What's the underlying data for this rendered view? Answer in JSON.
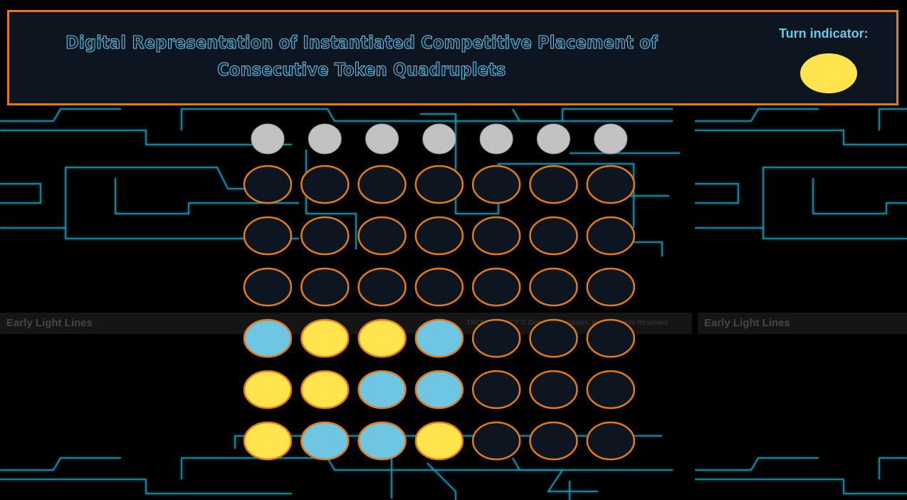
{
  "header": {
    "title": "Digital Representation of Instantiated Competitive Placement of Consecutive Token Quadruplets",
    "turn_label": "Turn indicator:",
    "turn_color": "#ffe44d"
  },
  "background": {
    "labels": [
      "Early Light Lines",
      "Early Light Lines"
    ],
    "copyright": "TRON: LEGACY © Disney Enterprises, Inc. All Rights Reserved."
  },
  "board": {
    "drop_button_color": "#c2c2c2",
    "empty_color": "#0d1520",
    "rim_color": "#e07b1a",
    "rows": [
      [
        null,
        null,
        null,
        null,
        null,
        null,
        null
      ],
      [
        null,
        null,
        null,
        null,
        null,
        null,
        null
      ],
      [
        null,
        null,
        null,
        null,
        null,
        null,
        null
      ],
      [
        "#6ec6e3",
        "#ffe44d",
        "#ffe44d",
        "#6ec6e3",
        null,
        null,
        null
      ],
      [
        "#ffe44d",
        "#ffe44d",
        "#6ec6e3",
        "#6ec6e3",
        null,
        null,
        null
      ],
      [
        "#ffe44d",
        "#6ec6e3",
        "#6ec6e3",
        "#ffe44d",
        null,
        null,
        null
      ]
    ]
  }
}
